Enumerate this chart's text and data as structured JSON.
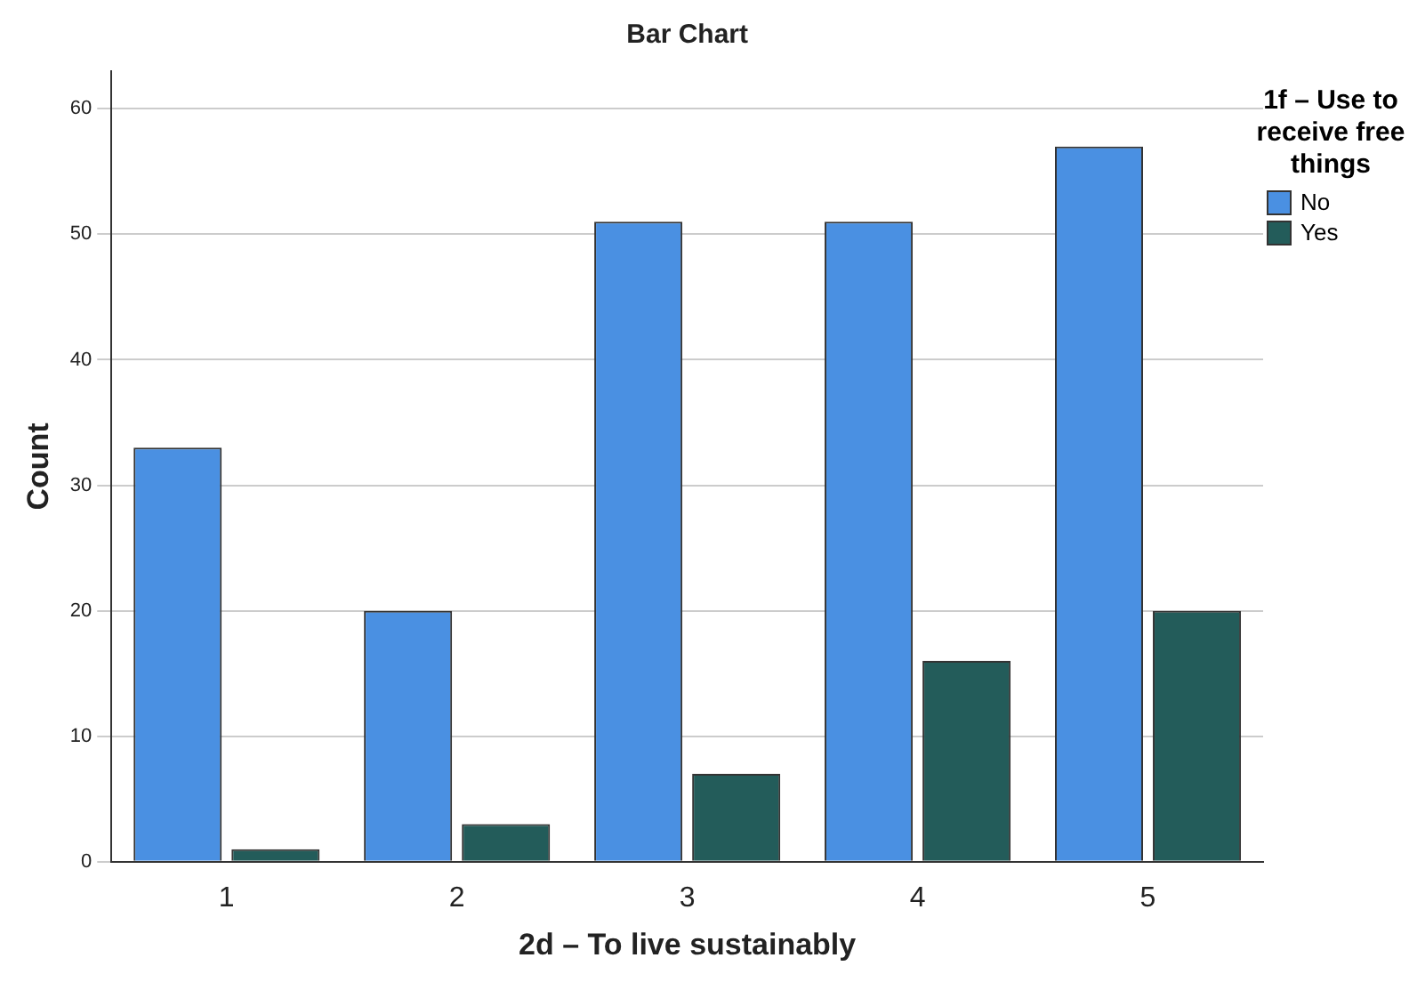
{
  "chart_data": {
    "type": "bar",
    "title": "Bar Chart",
    "xlabel": "2d – To live sustainably",
    "ylabel": "Count",
    "legend_title": "1f – Use to receive free things",
    "categories": [
      "1",
      "2",
      "3",
      "4",
      "5"
    ],
    "series": [
      {
        "name": "No",
        "color": "#4a90e2",
        "values": [
          33,
          20,
          51,
          51,
          57
        ]
      },
      {
        "name": "Yes",
        "color": "#235c5a",
        "values": [
          1,
          3,
          7,
          16,
          20
        ]
      }
    ],
    "ylim": [
      0,
      63
    ],
    "yticks": [
      0,
      10,
      20,
      30,
      40,
      50,
      60
    ],
    "grid": "y",
    "legend": "right"
  }
}
